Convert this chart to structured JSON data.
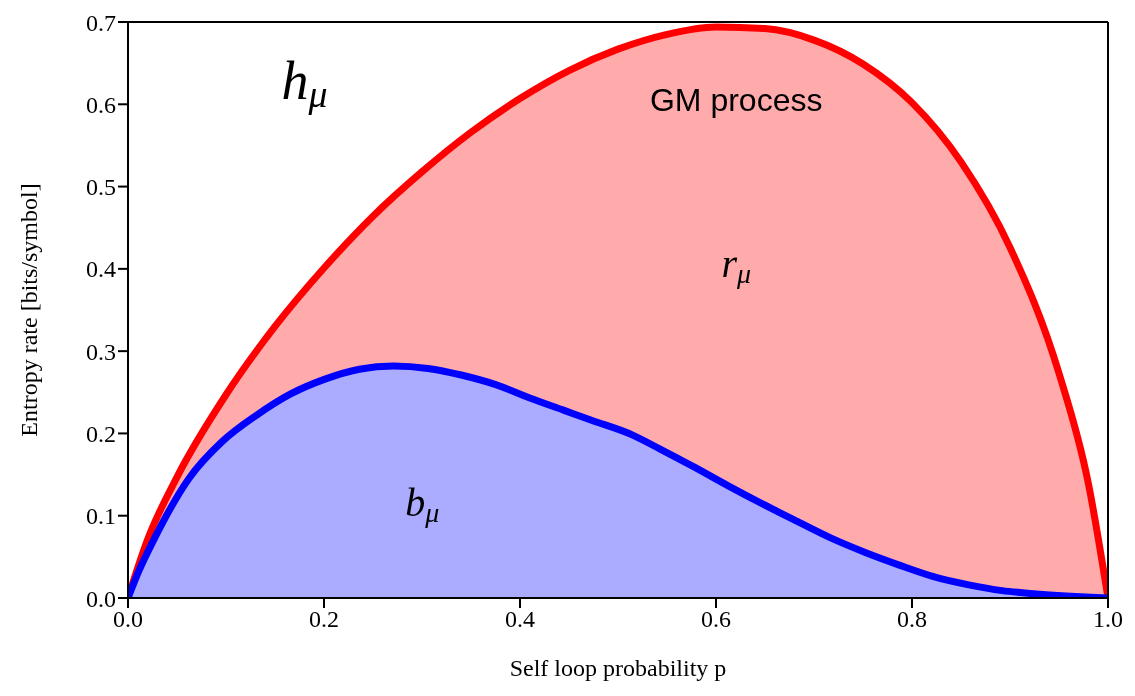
{
  "chart_data": {
    "type": "area",
    "xlabel": "Self loop probability p",
    "ylabel": "Entropy rate [bits/symbol]",
    "xlim": [
      0,
      1
    ],
    "ylim": [
      0,
      0.7
    ],
    "xticks": [
      {
        "value": 0,
        "label": "0.0"
      },
      {
        "value": 0.2,
        "label": "0.2"
      },
      {
        "value": 0.4,
        "label": "0.4"
      },
      {
        "value": 0.6,
        "label": "0.6"
      },
      {
        "value": 0.8,
        "label": "0.8"
      },
      {
        "value": 1,
        "label": "1.0"
      }
    ],
    "yticks": [
      {
        "value": 0,
        "label": "0.0"
      },
      {
        "value": 0.1,
        "label": "0.1"
      },
      {
        "value": 0.2,
        "label": "0.2"
      },
      {
        "value": 0.3,
        "label": "0.3"
      },
      {
        "value": 0.4,
        "label": "0.4"
      },
      {
        "value": 0.5,
        "label": "0.5"
      },
      {
        "value": 0.6,
        "label": "0.6"
      },
      {
        "value": 0.7,
        "label": "0.7"
      }
    ],
    "series": [
      {
        "color": "#ff0000",
        "x": [
          0,
          0.02,
          0.05,
          0.1,
          0.15,
          0.2,
          0.25,
          0.3,
          0.35,
          0.4,
          0.45,
          0.5,
          0.55,
          0.6,
          0.65,
          0.7,
          0.75,
          0.8,
          0.85,
          0.9,
          0.95,
          0.98,
          1
        ],
        "values": [
          0,
          0.071,
          0.147,
          0.247,
          0.33,
          0.401,
          0.464,
          0.518,
          0.566,
          0.607,
          0.641,
          0.667,
          0.685,
          0.694,
          0.692,
          0.678,
          0.649,
          0.602,
          0.53,
          0.426,
          0.273,
          0.139,
          0
        ]
      },
      {
        "color": "#0000ff",
        "x": [
          0,
          0.01,
          0.026,
          0.062,
          0.096,
          0.131,
          0.166,
          0.201,
          0.236,
          0.271,
          0.306,
          0.34,
          0.376,
          0.41,
          0.445,
          0.473,
          0.515,
          0.543,
          0.578,
          0.613,
          0.648,
          0.683,
          0.717,
          0.753,
          0.787,
          0.822,
          0.858,
          0.892,
          0.927,
          1
        ],
        "values": [
          0,
          0.03,
          0.07,
          0.145,
          0.19,
          0.222,
          0.248,
          0.266,
          0.278,
          0.282,
          0.279,
          0.271,
          0.259,
          0.243,
          0.228,
          0.216,
          0.198,
          0.181,
          0.159,
          0.136,
          0.114,
          0.093,
          0.073,
          0.055,
          0.04,
          0.026,
          0.016,
          0.009,
          0.005,
          0
        ]
      }
    ],
    "annotations": [
      "h$_{μ}$",
      "GM process",
      "r$_{μ}$",
      "b$_{μ}$"
    ]
  }
}
